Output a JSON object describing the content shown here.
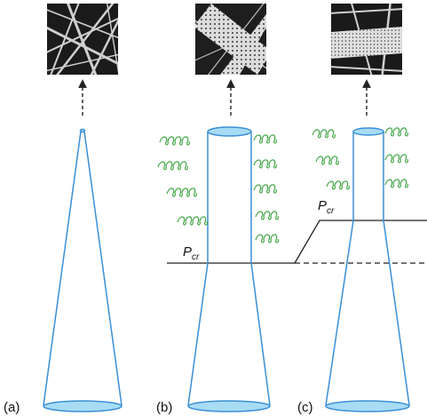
{
  "panels": [
    {
      "label": "(a)",
      "threshold_label": "",
      "threshold_sub": ""
    },
    {
      "label": "(b)",
      "threshold_label": "P",
      "threshold_sub": "cr"
    },
    {
      "label": "(c)",
      "threshold_label": "P",
      "threshold_sub": "cr"
    }
  ],
  "colors": {
    "cone_stroke": "#3a8fd6",
    "cone_fill_ellipse": "#a8dcf5",
    "coil": "#45a84a",
    "line": "#222222",
    "micrograph_dark": "#1b1b1b",
    "micrograph_fiber": "#cfcfcf"
  },
  "icons": [
    "fiber-micrograph",
    "dashed-arrow",
    "polymer-coil"
  ]
}
